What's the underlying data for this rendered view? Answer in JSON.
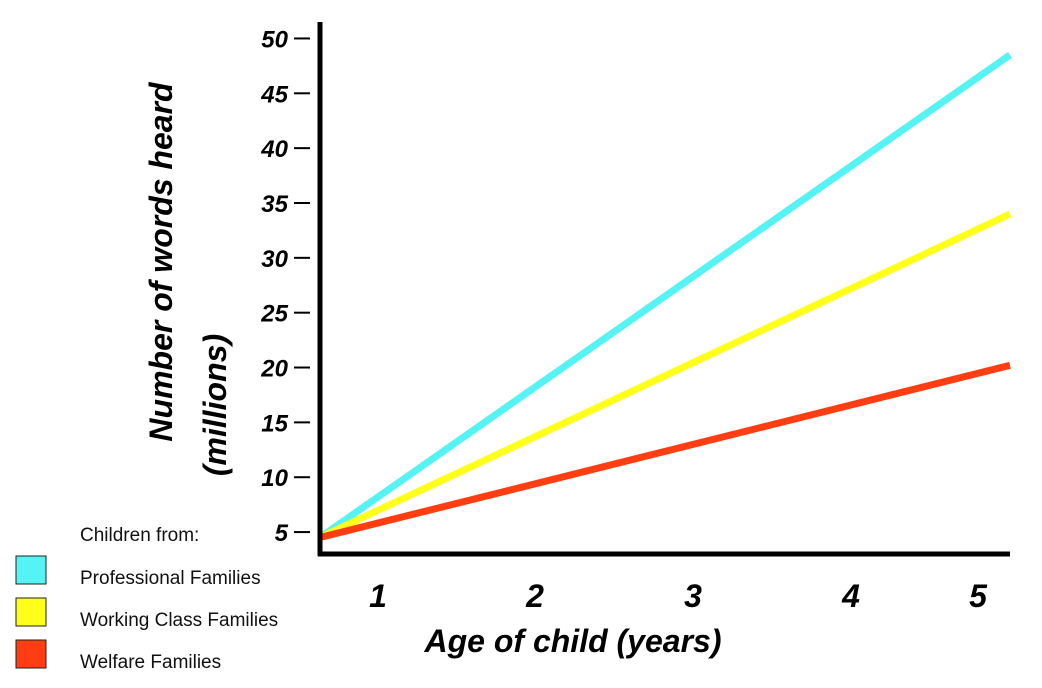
{
  "chart_data": {
    "type": "line",
    "title": "",
    "xlabel": "Age of child (years)",
    "ylabel": "Number of words heard",
    "ylabel_sub": "(millions)",
    "x_ticks": [
      "1",
      "2",
      "3",
      "4",
      "5"
    ],
    "y_ticks": [
      "5",
      "10",
      "15",
      "20",
      "25",
      "30",
      "35",
      "40",
      "45",
      "50"
    ],
    "xlim": [
      0.4,
      5.1
    ],
    "ylim": [
      3,
      51.5
    ],
    "legend": {
      "title": "Children from:",
      "position": "bottom-left"
    },
    "series": [
      {
        "name": "Professional Families",
        "color": "#55f3f3",
        "points": [
          [
            0.4,
            4.5
          ],
          [
            5.1,
            48.5
          ]
        ]
      },
      {
        "name": "Working Class Families",
        "color": "#ffff19",
        "points": [
          [
            0.4,
            4.5
          ],
          [
            5.1,
            34.0
          ]
        ]
      },
      {
        "name": "Welfare Families",
        "color": "#ff3d12",
        "points": [
          [
            0.4,
            4.5
          ],
          [
            5.1,
            20.2
          ]
        ]
      }
    ]
  }
}
